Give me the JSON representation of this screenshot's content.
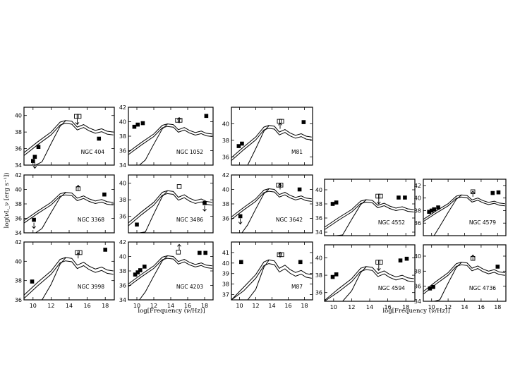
{
  "figure": {
    "ylabel": "log(νL_ν [erg s⁻¹])",
    "xlabel_group1": "log[Frequency (ν/Hz)]",
    "xlabel_group2": "log[Frequency (ν/Hz)]"
  },
  "chart_data": [
    {
      "type": "scatter",
      "title": "NGC 404",
      "ylim": [
        34,
        41
      ],
      "yticks": [
        34,
        36,
        38,
        40
      ],
      "xlim": [
        9,
        19
      ],
      "xticks": [],
      "points": [
        {
          "x": 10.0,
          "y": 34.5,
          "s": "filled"
        },
        {
          "x": 10.2,
          "y": 35.0,
          "s": "filled"
        },
        {
          "x": 10.6,
          "y": 36.2,
          "s": "filled"
        },
        {
          "x": 17.3,
          "y": 37.2,
          "s": "filled"
        },
        {
          "x": 14.8,
          "y": 39.9,
          "s": "open"
        },
        {
          "x": 15.1,
          "y": 39.9,
          "s": "open"
        }
      ],
      "arrows": [
        {
          "x": 10.2,
          "y": 34.3,
          "dir": "down"
        },
        {
          "x": 14.9,
          "y": 39.6,
          "dir": "down"
        }
      ]
    },
    {
      "type": "scatter",
      "title": "NGC 1052",
      "ylim": [
        34,
        42
      ],
      "yticks": [
        34,
        36,
        38,
        40,
        42
      ],
      "xlim": [
        9,
        19
      ],
      "xticks": [],
      "points": [
        {
          "x": 9.7,
          "y": 39.3,
          "s": "filled"
        },
        {
          "x": 10.1,
          "y": 39.6,
          "s": "filled"
        },
        {
          "x": 10.7,
          "y": 39.8,
          "s": "filled"
        },
        {
          "x": 18.2,
          "y": 40.8,
          "s": "filled"
        },
        {
          "x": 14.8,
          "y": 40.2,
          "s": "open"
        },
        {
          "x": 15.1,
          "y": 40.2,
          "s": "open"
        }
      ],
      "arrows": [
        {
          "x": 15.0,
          "y": 39.8,
          "dir": "up"
        }
      ]
    },
    {
      "type": "scatter",
      "title": "M81",
      "ylim": [
        35,
        42
      ],
      "yticks": [
        36,
        38,
        40
      ],
      "xlim": [
        9,
        19
      ],
      "xticks": [],
      "points": [
        {
          "x": 9.9,
          "y": 37.3,
          "s": "filled"
        },
        {
          "x": 10.3,
          "y": 37.6,
          "s": "filled"
        },
        {
          "x": 17.9,
          "y": 40.2,
          "s": "filled"
        },
        {
          "x": 14.9,
          "y": 40.3,
          "s": "open"
        },
        {
          "x": 15.2,
          "y": 40.3,
          "s": "open"
        }
      ],
      "arrows": [
        {
          "x": 15.0,
          "y": 39.4,
          "dir": "up"
        }
      ]
    },
    {
      "type": "scatter",
      "title": "NGC 3368",
      "ylim": [
        34,
        42
      ],
      "yticks": [
        34,
        36,
        38,
        40,
        42
      ],
      "xlim": [
        9,
        19
      ],
      "xticks": [],
      "points": [
        {
          "x": 10.1,
          "y": 35.8,
          "s": "filled"
        },
        {
          "x": 17.9,
          "y": 39.3,
          "s": "filled"
        },
        {
          "x": 15.0,
          "y": 40.1,
          "s": "open"
        }
      ],
      "arrows": [
        {
          "x": 10.1,
          "y": 35.4,
          "dir": "down"
        },
        {
          "x": 15.0,
          "y": 39.8,
          "dir": "up"
        }
      ]
    },
    {
      "type": "scatter",
      "title": "NGC 3486",
      "ylim": [
        34,
        41
      ],
      "yticks": [
        36,
        38,
        40
      ],
      "xlim": [
        9,
        19
      ],
      "xticks": [],
      "points": [
        {
          "x": 10.0,
          "y": 35.0,
          "s": "filled"
        },
        {
          "x": 18.0,
          "y": 37.6,
          "s": "filled"
        },
        {
          "x": 15.0,
          "y": 39.6,
          "s": "open"
        }
      ],
      "arrows": [
        {
          "x": 18.0,
          "y": 37.3,
          "dir": "down"
        }
      ]
    },
    {
      "type": "scatter",
      "title": "NGC 3642",
      "ylim": [
        34,
        42
      ],
      "yticks": [
        36,
        38,
        40,
        42
      ],
      "xlim": [
        9,
        19
      ],
      "xticks": [],
      "points": [
        {
          "x": 10.1,
          "y": 36.3,
          "s": "filled"
        },
        {
          "x": 17.4,
          "y": 40.0,
          "s": "filled"
        },
        {
          "x": 14.8,
          "y": 40.6,
          "s": "open"
        },
        {
          "x": 15.1,
          "y": 40.6,
          "s": "open"
        }
      ],
      "arrows": [
        {
          "x": 10.1,
          "y": 36.0,
          "dir": "down"
        },
        {
          "x": 15.0,
          "y": 40.0,
          "dir": "up"
        }
      ]
    },
    {
      "type": "scatter",
      "title": "NGC 4552",
      "ylim": [
        33.5,
        41.5
      ],
      "yticks": [
        34,
        36,
        38,
        40
      ],
      "xlim": [
        9,
        19
      ],
      "xticks": [],
      "points": [
        {
          "x": 9.9,
          "y": 38.0,
          "s": "filled"
        },
        {
          "x": 10.3,
          "y": 38.2,
          "s": "filled"
        },
        {
          "x": 17.2,
          "y": 38.9,
          "s": "filled"
        },
        {
          "x": 17.9,
          "y": 38.9,
          "s": "filled"
        },
        {
          "x": 14.9,
          "y": 39.1,
          "s": "open"
        },
        {
          "x": 15.2,
          "y": 39.1,
          "s": "open"
        }
      ],
      "arrows": [
        {
          "x": 15.0,
          "y": 38.8,
          "dir": "down"
        }
      ]
    },
    {
      "type": "scatter",
      "title": "NGC 4579",
      "ylim": [
        34,
        43
      ],
      "yticks": [
        36,
        38,
        40,
        42
      ],
      "xlim": [
        9,
        19
      ],
      "xticks": [],
      "points": [
        {
          "x": 9.7,
          "y": 37.8,
          "s": "filled"
        },
        {
          "x": 10.0,
          "y": 38.0,
          "s": "filled"
        },
        {
          "x": 10.3,
          "y": 38.2,
          "s": "filled"
        },
        {
          "x": 10.8,
          "y": 38.5,
          "s": "filled"
        },
        {
          "x": 17.4,
          "y": 40.8,
          "s": "filled"
        },
        {
          "x": 18.1,
          "y": 40.9,
          "s": "filled"
        },
        {
          "x": 15.0,
          "y": 41.0,
          "s": "open"
        }
      ],
      "arrows": [
        {
          "x": 15.0,
          "y": 40.2,
          "dir": "up"
        }
      ]
    },
    {
      "type": "scatter",
      "title": "NGC 3998",
      "ylim": [
        36,
        42
      ],
      "yticks": [
        36,
        38,
        40,
        42
      ],
      "xlim": [
        9,
        19
      ],
      "xticks": [
        10,
        12,
        14,
        16,
        18
      ],
      "points": [
        {
          "x": 9.9,
          "y": 37.9,
          "s": "filled"
        },
        {
          "x": 18.0,
          "y": 41.2,
          "s": "filled"
        },
        {
          "x": 14.9,
          "y": 40.9,
          "s": "open"
        },
        {
          "x": 15.2,
          "y": 40.9,
          "s": "open"
        }
      ],
      "arrows": [
        {
          "x": 15.0,
          "y": 40.3,
          "dir": "up"
        }
      ]
    },
    {
      "type": "scatter",
      "title": "NGC 4203",
      "ylim": [
        34,
        42
      ],
      "yticks": [
        34,
        36,
        38,
        40,
        42
      ],
      "xlim": [
        9,
        19
      ],
      "xticks": [
        10,
        12,
        14,
        16,
        18
      ],
      "points": [
        {
          "x": 9.8,
          "y": 37.5,
          "s": "filled"
        },
        {
          "x": 10.1,
          "y": 37.8,
          "s": "filled"
        },
        {
          "x": 10.4,
          "y": 38.1,
          "s": "filled"
        },
        {
          "x": 10.9,
          "y": 38.6,
          "s": "filled"
        },
        {
          "x": 17.4,
          "y": 40.5,
          "s": "filled"
        },
        {
          "x": 18.1,
          "y": 40.5,
          "s": "filled"
        },
        {
          "x": 14.9,
          "y": 40.6,
          "s": "open"
        }
      ],
      "arrows": [
        {
          "x": 15.0,
          "y": 40.9,
          "dir": "up"
        }
      ]
    },
    {
      "type": "scatter",
      "title": "M87",
      "ylim": [
        36.5,
        42
      ],
      "yticks": [
        37,
        38,
        39,
        40,
        41
      ],
      "xlim": [
        9,
        19
      ],
      "xticks": [
        10,
        12,
        14,
        16,
        18
      ],
      "points": [
        {
          "x": 10.2,
          "y": 40.1,
          "s": "filled"
        },
        {
          "x": 17.5,
          "y": 40.1,
          "s": "filled"
        },
        {
          "x": 14.9,
          "y": 40.8,
          "s": "open"
        },
        {
          "x": 15.2,
          "y": 40.8,
          "s": "open"
        }
      ],
      "arrows": [
        {
          "x": 15.0,
          "y": 40.5,
          "dir": "up"
        }
      ]
    },
    {
      "type": "scatter",
      "title": "NGC 4594",
      "ylim": [
        35,
        41.5
      ],
      "yticks": [
        36,
        38,
        40
      ],
      "xlim": [
        9,
        19
      ],
      "xticks": [
        10,
        12,
        14,
        16,
        18
      ],
      "points": [
        {
          "x": 9.9,
          "y": 37.8,
          "s": "filled"
        },
        {
          "x": 10.3,
          "y": 38.1,
          "s": "filled"
        },
        {
          "x": 17.4,
          "y": 39.7,
          "s": "filled"
        },
        {
          "x": 18.1,
          "y": 39.9,
          "s": "filled"
        },
        {
          "x": 14.9,
          "y": 39.5,
          "s": "open"
        },
        {
          "x": 15.2,
          "y": 39.5,
          "s": "open"
        }
      ],
      "arrows": [
        {
          "x": 15.0,
          "y": 39.2,
          "dir": "down"
        }
      ]
    },
    {
      "type": "scatter",
      "title": "NGC 4736",
      "ylim": [
        34,
        41.5
      ],
      "yticks": [
        34,
        36,
        38,
        40
      ],
      "xlim": [
        9,
        19
      ],
      "xticks": [
        10,
        12,
        14,
        16,
        18
      ],
      "points": [
        {
          "x": 9.8,
          "y": 35.7,
          "s": "filled"
        },
        {
          "x": 10.2,
          "y": 35.9,
          "s": "filled"
        },
        {
          "x": 18.0,
          "y": 38.6,
          "s": "filled"
        },
        {
          "x": 15.0,
          "y": 39.7,
          "s": "open"
        }
      ],
      "arrows": [
        {
          "x": 15.0,
          "y": 39.4,
          "dir": "up"
        }
      ]
    }
  ]
}
